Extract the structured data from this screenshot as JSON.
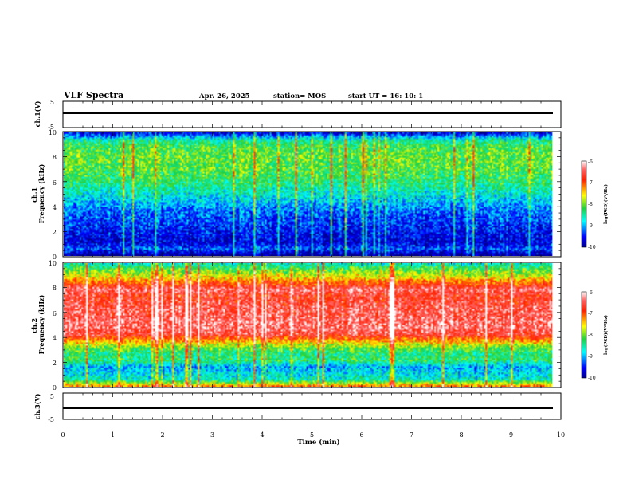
{
  "header": {
    "title": "VLF Spectra",
    "date": "Apr. 26, 2025",
    "station": "station= MOS",
    "start": "start  UT  =   16: 10: 1"
  },
  "chart_data": [
    {
      "type": "line",
      "name": "ch1-voltage",
      "ylabel": "ch.1(V)",
      "ylim": [
        -5,
        5
      ],
      "y_ticks": [
        "5",
        "-5"
      ],
      "x": [
        0,
        9.83
      ],
      "values": [
        0,
        0
      ]
    },
    {
      "type": "heatmap",
      "name": "ch1-spectrogram",
      "ylabel": "ch.1\nFrequency (kHz)",
      "ylim": [
        0,
        10
      ],
      "y_ticks": [
        "0",
        "2",
        "4",
        "6",
        "8",
        "10"
      ],
      "data_extent_min": 9.83,
      "colorbar": {
        "label": "log(PSD)(V²/Hz)",
        "range": [
          -10,
          -6
        ],
        "ticks": [
          "-6",
          "-7",
          "-8",
          "-9",
          "-10"
        ]
      },
      "background_profile": [
        -10.0,
        -9.3,
        -9.7,
        -9.6,
        -9.5,
        -9.4,
        -9.3,
        -9.2,
        -9.0,
        -8.8,
        -8.6,
        -8.4,
        -8.25,
        -8.15,
        -8.1,
        -8.05,
        -8.1,
        -8.2,
        -8.6,
        -9.6
      ]
    },
    {
      "type": "heatmap",
      "name": "ch2-spectrogram",
      "ylabel": "ch.2\nFrequency (kHz)",
      "ylim": [
        0,
        10
      ],
      "y_ticks": [
        "0",
        "2",
        "4",
        "6",
        "8",
        "10"
      ],
      "data_extent_min": 9.83,
      "colorbar": {
        "label": "log(PSD)(V²/Hz)",
        "range": [
          -10,
          -6
        ],
        "ticks": [
          "-6",
          "-7",
          "-8",
          "-9",
          "-10"
        ]
      },
      "background_profile": [
        -7.2,
        -8.6,
        -8.8,
        -9.0,
        -8.3,
        -8.4,
        -8.0,
        -7.3,
        -6.6,
        -6.4,
        -6.4,
        -6.5,
        -6.5,
        -6.6,
        -6.7,
        -6.4,
        -7.0,
        -7.6,
        -8.0,
        -8.6
      ]
    },
    {
      "type": "line",
      "name": "ch3-voltage",
      "ylabel": "ch.3(V)",
      "ylim": [
        -5,
        5
      ],
      "y_ticks": [
        "5",
        "-5"
      ],
      "x": [
        0,
        9.83
      ],
      "values": [
        0,
        0
      ]
    }
  ],
  "x_axis": {
    "label": "Time  (min)",
    "xlim": [
      0,
      10
    ],
    "ticks": [
      "0",
      "1",
      "2",
      "3",
      "4",
      "5",
      "6",
      "7",
      "8",
      "9",
      "10"
    ]
  },
  "colors": {
    "axis": "#000000",
    "background": "#ffffff",
    "no_data": "#000000"
  }
}
